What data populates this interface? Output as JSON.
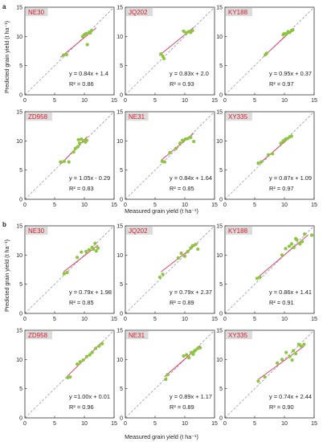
{
  "figure": {
    "colors": {
      "point": "#8cc63f",
      "fit": "#e2436b",
      "identity": "#9a9a9a",
      "tag_bg": "#dcdcdc",
      "tag_text": "#d22030"
    },
    "xlabel": "Measured grain yield (t ha⁻¹)",
    "ylabel": "Predicted grain yield (t ha⁻¹)",
    "panels": [
      {
        "letter": "a"
      },
      {
        "letter": "b"
      }
    ]
  },
  "chart_data": [
    {
      "type": "scatter",
      "group": "a",
      "name": "NE30",
      "xlim": [
        0,
        15
      ],
      "ylim": [
        0,
        15
      ],
      "xticks": [
        0,
        5,
        10,
        15
      ],
      "yticks": [
        0,
        5,
        10,
        15
      ],
      "x": [
        6.5,
        7.0,
        9.7,
        10.0,
        10.3,
        10.5,
        10.8,
        11.0,
        11.2
      ],
      "y": [
        6.8,
        6.9,
        10.0,
        10.3,
        10.5,
        8.6,
        10.7,
        10.6,
        11.0
      ],
      "fit": {
        "slope": 0.84,
        "intercept": 1.4,
        "x0": 6.0,
        "x1": 12.0
      },
      "equation": "y = 0.84x + 1.4",
      "r2": "R² = 0.86"
    },
    {
      "type": "scatter",
      "group": "a",
      "name": "JQ202",
      "xlim": [
        0,
        15
      ],
      "ylim": [
        0,
        15
      ],
      "xticks": [
        0,
        5,
        10,
        15
      ],
      "yticks": [
        0,
        5,
        10,
        15
      ],
      "x": [
        6.0,
        6.3,
        6.5,
        9.8,
        10.2,
        10.6,
        11.0,
        11.3
      ],
      "y": [
        7.0,
        6.6,
        6.2,
        10.9,
        10.6,
        10.8,
        10.7,
        11.0
      ],
      "fit": {
        "slope": 0.83,
        "intercept": 2.0,
        "x0": 5.7,
        "x1": 11.5
      },
      "equation": "y = 0.83x + 2.0",
      "r2": "R² = 0.93"
    },
    {
      "type": "scatter",
      "group": "a",
      "name": "KY188",
      "xlim": [
        0,
        15
      ],
      "ylim": [
        0,
        15
      ],
      "xticks": [
        0,
        5,
        10,
        15
      ],
      "yticks": [
        0,
        5,
        10,
        15
      ],
      "x": [
        6.8,
        7.0,
        9.8,
        10.0,
        10.3,
        10.6,
        10.9,
        11.2,
        11.4
      ],
      "y": [
        6.9,
        7.1,
        10.3,
        10.5,
        10.4,
        10.8,
        10.7,
        11.0,
        11.1
      ],
      "fit": {
        "slope": 0.95,
        "intercept": 0.37,
        "x0": 6.5,
        "x1": 11.6
      },
      "equation": "y = 0.95x + 0.37",
      "r2": "R² = 0.97"
    },
    {
      "type": "scatter",
      "group": "a",
      "name": "ZD958",
      "xlim": [
        0,
        15
      ],
      "ylim": [
        0,
        15
      ],
      "xticks": [
        0,
        5,
        10,
        15
      ],
      "yticks": [
        0,
        5,
        10,
        15
      ],
      "x": [
        6.0,
        6.6,
        7.4,
        8.2,
        8.5,
        8.9,
        9.2,
        9.5,
        9.9,
        10.2,
        10.4,
        9.0
      ],
      "y": [
        6.4,
        6.5,
        6.4,
        8.1,
        8.7,
        9.0,
        9.6,
        10.3,
        10.0,
        9.8,
        10.1,
        10.2
      ],
      "fit": {
        "slope": 1.05,
        "intercept": -0.29,
        "x0": 6.0,
        "x1": 10.5
      },
      "equation": "y = 1.05x - 0.29",
      "r2": "R² = 0.83"
    },
    {
      "type": "scatter",
      "group": "a",
      "name": "NE31",
      "xlim": [
        0,
        15
      ],
      "ylim": [
        0,
        15
      ],
      "xticks": [
        0,
        5,
        10,
        15
      ],
      "yticks": [
        0,
        5,
        10,
        15
      ],
      "x": [
        6.2,
        6.6,
        7.5,
        8.5,
        9.2,
        9.6,
        10.1,
        10.5,
        11.0,
        11.5
      ],
      "y": [
        6.5,
        6.4,
        8.0,
        8.7,
        9.6,
        10.1,
        10.3,
        10.4,
        10.6,
        9.9
      ],
      "fit": {
        "slope": 0.84,
        "intercept": 1.64,
        "x0": 6.0,
        "x1": 11.5
      },
      "equation": "y = 0.84x + 1.64",
      "r2": "R² = 0.85"
    },
    {
      "type": "scatter",
      "group": "a",
      "name": "XY335",
      "xlim": [
        0,
        15
      ],
      "ylim": [
        0,
        15
      ],
      "xticks": [
        0,
        5,
        10,
        15
      ],
      "yticks": [
        0,
        5,
        10,
        15
      ],
      "x": [
        5.6,
        6.1,
        7.3,
        8.0,
        9.4,
        9.8,
        10.2,
        10.5,
        10.9,
        11.2
      ],
      "y": [
        6.2,
        6.4,
        7.6,
        7.8,
        9.6,
        10.0,
        10.3,
        10.4,
        10.7,
        10.8
      ],
      "fit": {
        "slope": 0.87,
        "intercept": 1.09,
        "x0": 5.5,
        "x1": 11.3
      },
      "equation": "y = 0.87x + 1.09",
      "r2": "R² = 0.97"
    },
    {
      "type": "scatter",
      "group": "b",
      "name": "NE30",
      "xlim": [
        0,
        15
      ],
      "ylim": [
        0,
        15
      ],
      "xticks": [
        0,
        5,
        10,
        15
      ],
      "yticks": [
        0,
        5,
        10,
        15
      ],
      "x": [
        6.6,
        7.1,
        8.8,
        9.5,
        10.3,
        10.8,
        11.3,
        11.8,
        12.3,
        12.0,
        11.5
      ],
      "y": [
        6.8,
        7.0,
        9.6,
        10.5,
        10.6,
        10.9,
        11.3,
        12.0,
        11.2,
        10.7,
        11.0
      ],
      "fit": {
        "slope": 0.79,
        "intercept": 1.98,
        "x0": 6.5,
        "x1": 12.3
      },
      "equation": "y = 0.79x + 1.98",
      "r2": "R² = 0.85"
    },
    {
      "type": "scatter",
      "group": "b",
      "name": "JQ202",
      "xlim": [
        0,
        15
      ],
      "ylim": [
        0,
        15
      ],
      "xticks": [
        0,
        5,
        10,
        15
      ],
      "yticks": [
        0,
        5,
        10,
        15
      ],
      "x": [
        5.8,
        6.3,
        8.9,
        9.4,
        10.0,
        10.5,
        11.0,
        11.3,
        11.8,
        12.2
      ],
      "y": [
        6.2,
        6.7,
        9.5,
        10.3,
        9.8,
        10.6,
        11.2,
        11.6,
        11.8,
        11.0
      ],
      "fit": {
        "slope": 0.79,
        "intercept": 2.37,
        "x0": 6.0,
        "x1": 12.2
      },
      "equation": "y = 0.79x + 2.37",
      "r2": "R² = 0.89"
    },
    {
      "type": "scatter",
      "group": "b",
      "name": "KY188",
      "xlim": [
        0,
        15
      ],
      "ylim": [
        0,
        15
      ],
      "xticks": [
        0,
        5,
        10,
        15
      ],
      "yticks": [
        0,
        5,
        10,
        15
      ],
      "x": [
        5.4,
        5.9,
        9.6,
        10.2,
        10.8,
        11.2,
        11.6,
        12.1,
        12.6,
        13.0,
        13.4,
        11.9,
        14.6
      ],
      "y": [
        6.0,
        6.2,
        10.0,
        11.1,
        11.5,
        11.9,
        11.3,
        12.6,
        11.9,
        12.3,
        13.6,
        12.8,
        13.4
      ],
      "fit": {
        "slope": 0.86,
        "intercept": 1.41,
        "x0": 5.3,
        "x1": 14.0
      },
      "equation": "y = 0.86x + 1.41",
      "r2": "R² = 0.91"
    },
    {
      "type": "scatter",
      "group": "b",
      "name": "ZD958",
      "xlim": [
        0,
        15
      ],
      "ylim": [
        0,
        15
      ],
      "xticks": [
        0,
        5,
        10,
        15
      ],
      "yticks": [
        0,
        5,
        10,
        15
      ],
      "x": [
        7.2,
        7.6,
        8.8,
        9.3,
        9.8,
        10.4,
        10.9,
        11.3,
        11.9,
        12.5,
        13.0
      ],
      "y": [
        6.9,
        7.0,
        9.2,
        9.6,
        9.9,
        10.5,
        10.8,
        11.2,
        11.9,
        12.3,
        12.7
      ],
      "fit": {
        "slope": 1.0,
        "intercept": 0.01,
        "x0": 7.0,
        "x1": 13.0
      },
      "equation": "y =1.00x + 0.01",
      "r2": "R² = 0.96"
    },
    {
      "type": "scatter",
      "group": "b",
      "name": "NE31",
      "xlim": [
        0,
        15
      ],
      "ylim": [
        0,
        15
      ],
      "xticks": [
        0,
        5,
        10,
        15
      ],
      "yticks": [
        0,
        5,
        10,
        15
      ],
      "x": [
        6.8,
        7.1,
        9.8,
        10.3,
        10.7,
        11.1,
        11.4,
        11.8,
        12.2,
        12.6,
        11.6
      ],
      "y": [
        6.6,
        7.4,
        10.6,
        10.8,
        10.3,
        11.2,
        10.9,
        11.6,
        11.9,
        12.0,
        11.4
      ],
      "fit": {
        "slope": 0.89,
        "intercept": 1.17,
        "x0": 6.6,
        "x1": 12.6
      },
      "equation": "y = 0.89x + 1.17",
      "r2": "R² = 0.89"
    },
    {
      "type": "scatter",
      "group": "b",
      "name": "XY335",
      "xlim": [
        0,
        15
      ],
      "ylim": [
        0,
        15
      ],
      "xticks": [
        0,
        5,
        10,
        15
      ],
      "yticks": [
        0,
        5,
        10,
        15
      ],
      "x": [
        5.6,
        6.7,
        8.8,
        9.6,
        10.3,
        10.9,
        11.5,
        11.9,
        12.4,
        12.8,
        13.3,
        11.3
      ],
      "y": [
        6.3,
        7.0,
        9.4,
        10.0,
        11.2,
        10.5,
        11.5,
        11.0,
        12.6,
        12.3,
        12.6,
        9.9
      ],
      "fit": {
        "slope": 0.74,
        "intercept": 2.44,
        "x0": 5.6,
        "x1": 13.3
      },
      "equation": "y = 0.74x + 2.44",
      "r2": "R² = 0.90"
    }
  ]
}
